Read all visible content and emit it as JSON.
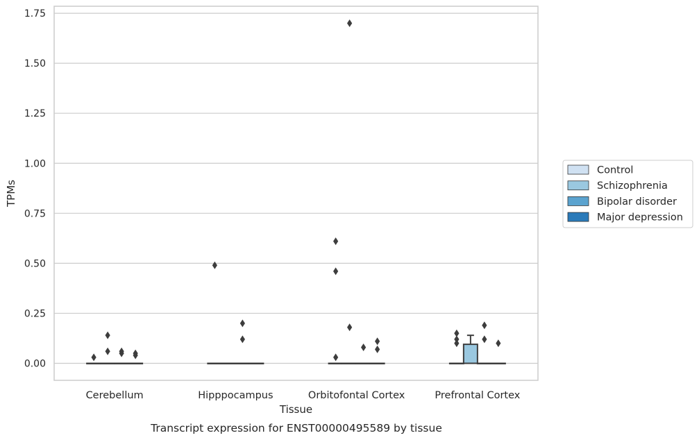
{
  "chart_data": {
    "type": "box",
    "title": "",
    "caption": "Transcript expression for ENST00000495589 by tissue",
    "xlabel": "Tissue",
    "ylabel": "TPMs",
    "categories": [
      "Cerebellum",
      "Hipppocampus",
      "Orbitofontal Cortex",
      "Prefrontal Cortex"
    ],
    "ylim": [
      -0.085,
      1.785
    ],
    "yticks": [
      0.0,
      0.25,
      0.5,
      0.75,
      1.0,
      1.25,
      1.5,
      1.75
    ],
    "ytick_labels": [
      "0.00",
      "0.25",
      "0.50",
      "0.75",
      "1.00",
      "1.25",
      "1.50",
      "1.75"
    ],
    "grid": true,
    "legend_position": "right",
    "series": [
      {
        "name": "Control",
        "color": "#d0e1f2",
        "boxes": [
          {
            "category": "Cerebellum",
            "q1": 0,
            "median": 0,
            "q3": 0,
            "whisker_low": 0,
            "whisker_high": 0,
            "outliers": [
              0.03
            ]
          },
          {
            "category": "Hipppocampus",
            "q1": 0,
            "median": 0,
            "q3": 0,
            "whisker_low": 0,
            "whisker_high": 0,
            "outliers": [
              0.49
            ]
          },
          {
            "category": "Orbitofontal Cortex",
            "q1": 0,
            "median": 0,
            "q3": 0,
            "whisker_low": 0,
            "whisker_high": 0,
            "outliers": [
              0.61,
              0.46,
              0.03
            ]
          },
          {
            "category": "Prefrontal Cortex",
            "q1": 0,
            "median": 0,
            "q3": 0,
            "whisker_low": 0,
            "whisker_high": 0,
            "outliers": [
              0.15,
              0.12,
              0.1
            ]
          }
        ]
      },
      {
        "name": "Schizophrenia",
        "color": "#9ac8e0",
        "boxes": [
          {
            "category": "Cerebellum",
            "q1": 0,
            "median": 0,
            "q3": 0,
            "whisker_low": 0,
            "whisker_high": 0,
            "outliers": [
              0.14,
              0.06
            ]
          },
          {
            "category": "Hipppocampus",
            "q1": 0,
            "median": 0,
            "q3": 0,
            "whisker_low": 0,
            "whisker_high": 0,
            "outliers": []
          },
          {
            "category": "Orbitofontal Cortex",
            "q1": 0,
            "median": 0,
            "q3": 0,
            "whisker_low": 0,
            "whisker_high": 0,
            "outliers": [
              1.7,
              0.18
            ]
          },
          {
            "category": "Prefrontal Cortex",
            "q1": 0,
            "median": 0,
            "q3": 0.095,
            "whisker_low": 0,
            "whisker_high": 0.14,
            "outliers": []
          }
        ]
      },
      {
        "name": "Bipolar disorder",
        "color": "#5ba3cf",
        "boxes": [
          {
            "category": "Cerebellum",
            "q1": 0,
            "median": 0,
            "q3": 0,
            "whisker_low": 0,
            "whisker_high": 0,
            "outliers": [
              0.06,
              0.05
            ]
          },
          {
            "category": "Hipppocampus",
            "q1": 0,
            "median": 0,
            "q3": 0,
            "whisker_low": 0,
            "whisker_high": 0,
            "outliers": [
              0.2,
              0.12
            ]
          },
          {
            "category": "Orbitofontal Cortex",
            "q1": 0,
            "median": 0,
            "q3": 0,
            "whisker_low": 0,
            "whisker_high": 0,
            "outliers": [
              0.08
            ]
          },
          {
            "category": "Prefrontal Cortex",
            "q1": 0,
            "median": 0,
            "q3": 0,
            "whisker_low": 0,
            "whisker_high": 0,
            "outliers": [
              0.19,
              0.12
            ]
          }
        ]
      },
      {
        "name": "Major depression",
        "color": "#2a7ab9",
        "boxes": [
          {
            "category": "Cerebellum",
            "q1": 0,
            "median": 0,
            "q3": 0,
            "whisker_low": 0,
            "whisker_high": 0,
            "outliers": [
              0.05,
              0.04
            ]
          },
          {
            "category": "Hipppocampus",
            "q1": 0,
            "median": 0,
            "q3": 0,
            "whisker_low": 0,
            "whisker_high": 0,
            "outliers": []
          },
          {
            "category": "Orbitofontal Cortex",
            "q1": 0,
            "median": 0,
            "q3": 0,
            "whisker_low": 0,
            "whisker_high": 0,
            "outliers": [
              0.11,
              0.07
            ]
          },
          {
            "category": "Prefrontal Cortex",
            "q1": 0,
            "median": 0,
            "q3": 0,
            "whisker_low": 0,
            "whisker_high": 0,
            "outliers": [
              0.1
            ]
          }
        ]
      }
    ]
  }
}
